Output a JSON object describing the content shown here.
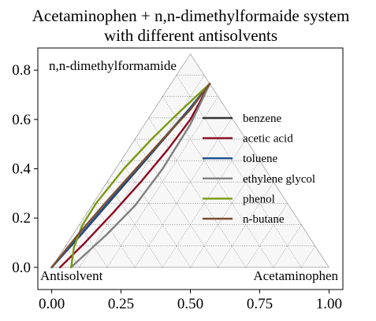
{
  "chart_data": {
    "type": "line",
    "subtype": "ternary",
    "title_lines": [
      "Acetaminophen + n,n-dimethylformaide system",
      "with different antisolvents"
    ],
    "xlim": [
      -0.05,
      1.05
    ],
    "ylim": [
      -0.09,
      0.89
    ],
    "xticks": [
      0.0,
      0.25,
      0.5,
      0.75,
      1.0
    ],
    "xtick_labels": [
      "0.00",
      "0.25",
      "0.50",
      "0.75",
      "1.00"
    ],
    "yticks": [
      0.0,
      0.2,
      0.4,
      0.6,
      0.8
    ],
    "ytick_labels": [
      "0.0",
      "0.2",
      "0.4",
      "0.6",
      "0.8"
    ],
    "corner_labels": {
      "top": "n,n-dimethylformamide",
      "bottom_left": "Antisolvent",
      "bottom_right": "Acetaminophen"
    },
    "triangle_grid": true,
    "grid_divisions": 10,
    "legend_position": "right",
    "series": [
      {
        "name": "benzene",
        "color": "#333333",
        "x": [
          0.0,
          0.1,
          0.2,
          0.3,
          0.4,
          0.5,
          0.57
        ],
        "y": [
          0.0,
          0.125,
          0.255,
          0.385,
          0.515,
          0.645,
          0.745
        ]
      },
      {
        "name": "acetic acid",
        "color": "#8b0a23",
        "x": [
          0.03,
          0.12,
          0.22,
          0.32,
          0.42,
          0.5,
          0.57
        ],
        "y": [
          0.0,
          0.1,
          0.22,
          0.345,
          0.48,
          0.6,
          0.745
        ]
      },
      {
        "name": "toluene",
        "color": "#1f4e8c",
        "x": [
          0.0,
          0.1,
          0.2,
          0.3,
          0.4,
          0.5,
          0.57
        ],
        "y": [
          0.0,
          0.127,
          0.258,
          0.388,
          0.518,
          0.648,
          0.745
        ]
      },
      {
        "name": "ethylene glycol",
        "color": "#808080",
        "x": [
          0.07,
          0.2,
          0.3,
          0.4,
          0.5,
          0.57
        ],
        "y": [
          0.0,
          0.135,
          0.25,
          0.4,
          0.58,
          0.745
        ]
      },
      {
        "name": "phenol",
        "color": "#7a9a12",
        "x": [
          0.07,
          0.08,
          0.11,
          0.16,
          0.26,
          0.36,
          0.46,
          0.57
        ],
        "y": [
          0.0,
          0.08,
          0.17,
          0.26,
          0.4,
          0.52,
          0.63,
          0.745
        ]
      },
      {
        "name": "n-butane",
        "color": "#7a4f30",
        "x": [
          0.0,
          0.1,
          0.2,
          0.3,
          0.4,
          0.5,
          0.57
        ],
        "y": [
          0.0,
          0.14,
          0.27,
          0.395,
          0.52,
          0.64,
          0.745
        ]
      }
    ]
  }
}
